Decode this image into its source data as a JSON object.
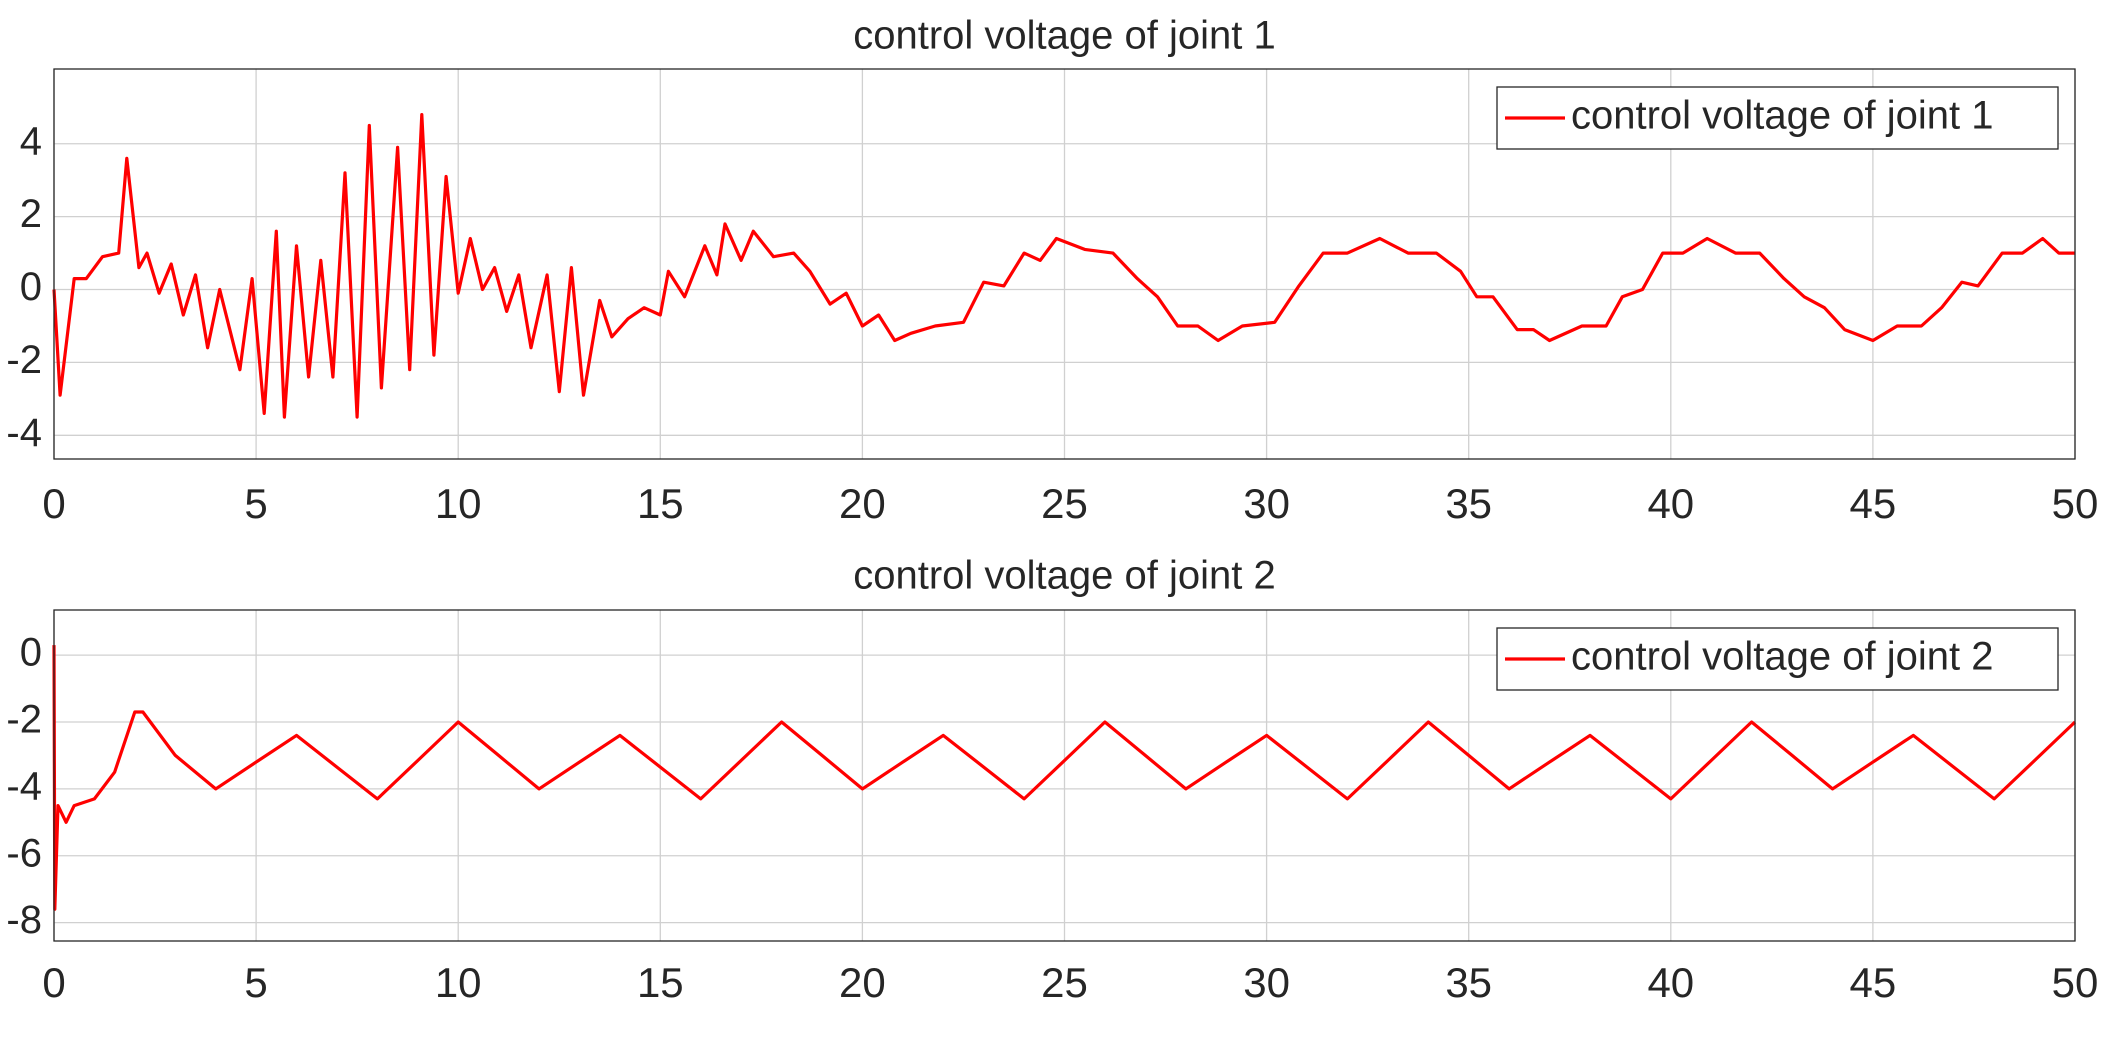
{
  "chart_data": [
    {
      "type": "line",
      "title": "control voltage of joint 1",
      "x": [
        0,
        0.15,
        0.5,
        0.8,
        1.2,
        1.6,
        1.8,
        2.1,
        2.3,
        2.6,
        2.9,
        3.2,
        3.5,
        3.8,
        4.1,
        4.6,
        4.9,
        5.2,
        5.5,
        5.7,
        6.0,
        6.3,
        6.6,
        6.9,
        7.2,
        7.5,
        7.8,
        8.1,
        8.5,
        8.8,
        9.1,
        9.4,
        9.7,
        10.0,
        10.3,
        10.6,
        10.9,
        11.2,
        11.5,
        11.8,
        12.2,
        12.5,
        12.8,
        13.1,
        13.5,
        13.8,
        14.2,
        14.6,
        15.0,
        15.2,
        15.6,
        16.1,
        16.4,
        16.6,
        17.0,
        17.3,
        17.8,
        18.3,
        18.7,
        19.2,
        19.6,
        20.0,
        20.4,
        20.8,
        21.2,
        21.8,
        22.5,
        23.0,
        23.5,
        24.0,
        24.4,
        24.8,
        25.5,
        26.2,
        26.8,
        27.3,
        27.8,
        28.3,
        28.8,
        29.4,
        30.2,
        30.8,
        31.4,
        32.0,
        32.8,
        33.5,
        34.2,
        34.8,
        35.2,
        35.6,
        36.2,
        36.6,
        37.0,
        37.8,
        38.4,
        38.8,
        39.3,
        39.8,
        40.3,
        40.9,
        41.6,
        42.2,
        42.8,
        43.3,
        43.8,
        44.3,
        45.0,
        45.6,
        46.2,
        46.7,
        47.2,
        47.6,
        48.2,
        48.7,
        49.2,
        49.6,
        50
      ],
      "series": [
        {
          "name": "control voltage of joint 1",
          "color": "#ff0000",
          "values": [
            0,
            -2.9,
            0.3,
            0.3,
            0.9,
            1.0,
            3.6,
            0.6,
            1.0,
            -0.1,
            0.7,
            -0.7,
            0.4,
            -1.6,
            0,
            -2.2,
            0.3,
            -3.4,
            1.6,
            -3.5,
            1.2,
            -2.4,
            0.8,
            -2.4,
            3.2,
            -3.5,
            4.5,
            -2.7,
            3.9,
            -2.2,
            4.8,
            -1.8,
            3.1,
            -0.1,
            1.4,
            0,
            0.6,
            -0.6,
            0.4,
            -1.6,
            0.4,
            -2.8,
            0.6,
            -2.9,
            -0.3,
            -1.3,
            -0.8,
            -0.5,
            -0.7,
            0.5,
            -0.2,
            1.2,
            0.4,
            1.8,
            0.8,
            1.6,
            0.9,
            1.0,
            0.5,
            -0.4,
            -0.1,
            -1.0,
            -0.7,
            -1.4,
            -1.2,
            -1.0,
            -0.9,
            0.2,
            0.1,
            1.0,
            0.8,
            1.4,
            1.1,
            1.0,
            0.3,
            -0.2,
            -1.0,
            -1.0,
            -1.4,
            -1.0,
            -0.9,
            0.1,
            1.0,
            1.0,
            1.4,
            1.0,
            1.0,
            0.5,
            -0.2,
            -0.2,
            -1.1,
            -1.1,
            -1.4,
            -1.0,
            -1.0,
            -0.2,
            0.0,
            1.0,
            1.0,
            1.4,
            1.0,
            1.0,
            0.3,
            -0.2,
            -0.5,
            -1.1,
            -1.4,
            -1.0,
            -1.0,
            -0.5,
            0.2,
            0.1,
            1.0,
            1.0,
            1.4,
            1.0,
            1.0
          ]
        }
      ],
      "xlim": [
        0,
        50
      ],
      "xticks": [
        0,
        5,
        10,
        15,
        20,
        25,
        30,
        35,
        40,
        45,
        50
      ],
      "ylim": [
        -4.65,
        6.05
      ],
      "yticks": [
        -4,
        -2,
        0,
        2,
        4
      ],
      "grid": true,
      "legend": "upper right"
    },
    {
      "type": "line",
      "title": "control voltage of joint 2",
      "x": [
        0,
        0.02,
        0.1,
        0.3,
        0.5,
        1.0,
        1.5,
        2.0,
        2.2,
        3,
        4,
        5,
        6,
        7,
        8,
        9,
        10,
        11,
        12,
        13,
        14,
        15,
        16,
        17,
        18,
        19,
        20,
        21,
        22,
        23,
        24,
        25,
        26,
        27,
        28,
        29,
        30,
        31,
        32,
        33,
        34,
        35,
        36,
        37,
        38,
        39,
        40,
        41,
        42,
        43,
        44,
        45,
        46,
        47,
        48,
        49,
        50
      ],
      "series": [
        {
          "name": "control voltage of joint 2",
          "color": "#ff0000",
          "values": [
            0.3,
            -7.6,
            -4.5,
            -5.0,
            -4.5,
            -4.3,
            -3.5,
            -1.7,
            -1.7,
            -3.0,
            -4.0,
            -3.2,
            -2.4,
            -3.35,
            -4.3,
            -3.15,
            -2.0,
            -3.0,
            -4.0,
            -3.2,
            -2.4,
            -3.35,
            -4.3,
            -3.15,
            -2.0,
            -3.0,
            -4.0,
            -3.2,
            -2.4,
            -3.35,
            -4.3,
            -3.15,
            -2.0,
            -3.0,
            -4.0,
            -3.2,
            -2.4,
            -3.35,
            -4.3,
            -3.15,
            -2.0,
            -3.0,
            -4.0,
            -3.2,
            -2.4,
            -3.35,
            -4.3,
            -3.15,
            -2.0,
            -3.0,
            -4.0,
            -3.2,
            -2.4,
            -3.35,
            -4.3,
            -3.15,
            -2.0
          ]
        }
      ],
      "xlim": [
        0,
        50
      ],
      "xticks": [
        0,
        5,
        10,
        15,
        20,
        25,
        30,
        35,
        40,
        45,
        50
      ],
      "ylim": [
        -8.55,
        1.35
      ],
      "yticks": [
        -8,
        -6,
        -4,
        -2,
        0
      ],
      "grid": true,
      "legend": "upper right"
    }
  ]
}
